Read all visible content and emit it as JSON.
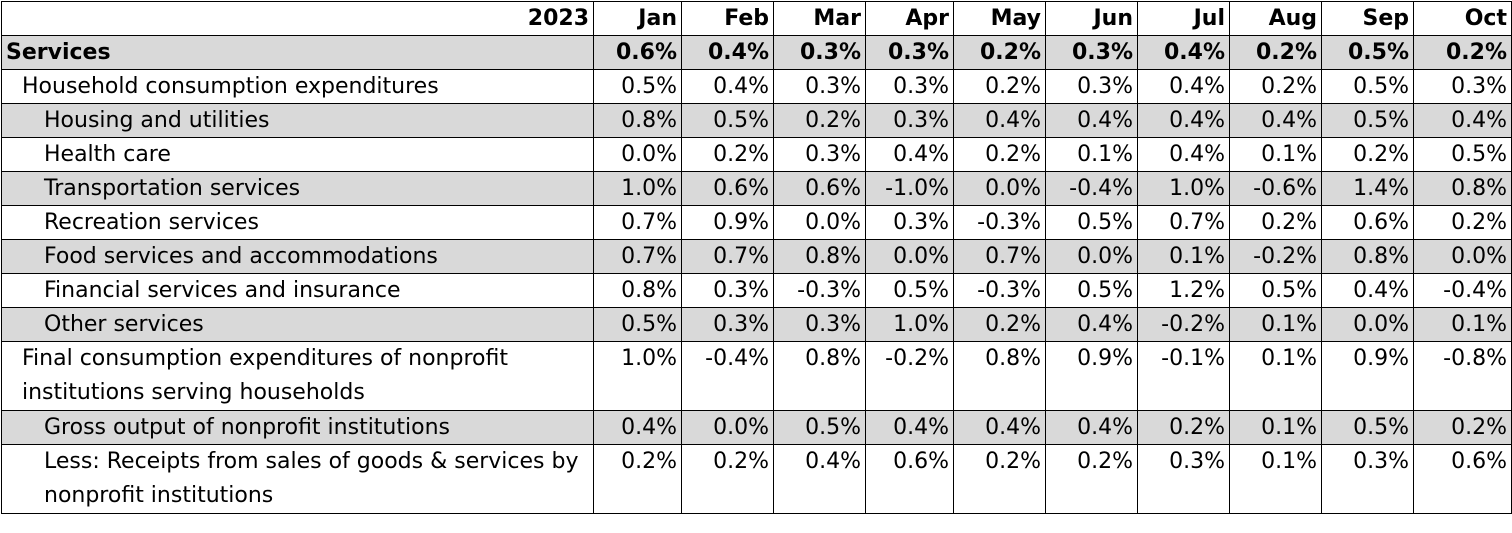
{
  "chart_data": {
    "type": "table",
    "corner_label": "2023",
    "columns": [
      "Jan",
      "Feb",
      "Mar",
      "Apr",
      "May",
      "Jun",
      "Jul",
      "Aug",
      "Sep",
      "Oct"
    ],
    "rows": [
      {
        "label": "Services",
        "level": 0,
        "bold": true,
        "shaded": true,
        "values": [
          "0.6%",
          "0.4%",
          "0.3%",
          "0.3%",
          "0.2%",
          "0.3%",
          "0.4%",
          "0.2%",
          "0.5%",
          "0.2%"
        ]
      },
      {
        "label": "Household consumption expenditures",
        "level": 1,
        "bold": false,
        "shaded": false,
        "values": [
          "0.5%",
          "0.4%",
          "0.3%",
          "0.3%",
          "0.2%",
          "0.3%",
          "0.4%",
          "0.2%",
          "0.5%",
          "0.3%"
        ]
      },
      {
        "label": "Housing and utilities",
        "level": 2,
        "bold": false,
        "shaded": true,
        "values": [
          "0.8%",
          "0.5%",
          "0.2%",
          "0.3%",
          "0.4%",
          "0.4%",
          "0.4%",
          "0.4%",
          "0.5%",
          "0.4%"
        ]
      },
      {
        "label": "Health care",
        "level": 2,
        "bold": false,
        "shaded": false,
        "values": [
          "0.0%",
          "0.2%",
          "0.3%",
          "0.4%",
          "0.2%",
          "0.1%",
          "0.4%",
          "0.1%",
          "0.2%",
          "0.5%"
        ]
      },
      {
        "label": "Transportation services",
        "level": 2,
        "bold": false,
        "shaded": true,
        "values": [
          "1.0%",
          "0.6%",
          "0.6%",
          "-1.0%",
          "0.0%",
          "-0.4%",
          "1.0%",
          "-0.6%",
          "1.4%",
          "0.8%"
        ]
      },
      {
        "label": "Recreation services",
        "level": 2,
        "bold": false,
        "shaded": false,
        "values": [
          "0.7%",
          "0.9%",
          "0.0%",
          "0.3%",
          "-0.3%",
          "0.5%",
          "0.7%",
          "0.2%",
          "0.6%",
          "0.2%"
        ]
      },
      {
        "label": "Food services and accommodations",
        "level": 2,
        "bold": false,
        "shaded": true,
        "values": [
          "0.7%",
          "0.7%",
          "0.8%",
          "0.0%",
          "0.7%",
          "0.0%",
          "0.1%",
          "-0.2%",
          "0.8%",
          "0.0%"
        ]
      },
      {
        "label": "Financial services and insurance",
        "level": 2,
        "bold": false,
        "shaded": false,
        "values": [
          "0.8%",
          "0.3%",
          "-0.3%",
          "0.5%",
          "-0.3%",
          "0.5%",
          "1.2%",
          "0.5%",
          "0.4%",
          "-0.4%"
        ]
      },
      {
        "label": "Other services",
        "level": 2,
        "bold": false,
        "shaded": true,
        "values": [
          "0.5%",
          "0.3%",
          "0.3%",
          "1.0%",
          "0.2%",
          "0.4%",
          "-0.2%",
          "0.1%",
          "0.0%",
          "0.1%"
        ]
      },
      {
        "label": "Final consumption expenditures of nonprofit institutions serving households",
        "level": 1,
        "bold": false,
        "shaded": false,
        "tall": true,
        "values": [
          "1.0%",
          "-0.4%",
          "0.8%",
          "-0.2%",
          "0.8%",
          "0.9%",
          "-0.1%",
          "0.1%",
          "0.9%",
          "-0.8%"
        ]
      },
      {
        "label": "Gross output of nonprofit institutions",
        "level": 2,
        "bold": false,
        "shaded": true,
        "values": [
          "0.4%",
          "0.0%",
          "0.5%",
          "0.4%",
          "0.4%",
          "0.4%",
          "0.2%",
          "0.1%",
          "0.5%",
          "0.2%"
        ]
      },
      {
        "label": "Less: Receipts from sales of goods & services by nonprofit institutions",
        "level": 2,
        "bold": false,
        "shaded": false,
        "tall": true,
        "values": [
          "0.2%",
          "0.2%",
          "0.4%",
          "0.6%",
          "0.2%",
          "0.2%",
          "0.3%",
          "0.1%",
          "0.3%",
          "0.6%"
        ]
      }
    ],
    "colors": {
      "shaded_row": "#d9d9d9",
      "border": "#000000"
    }
  }
}
